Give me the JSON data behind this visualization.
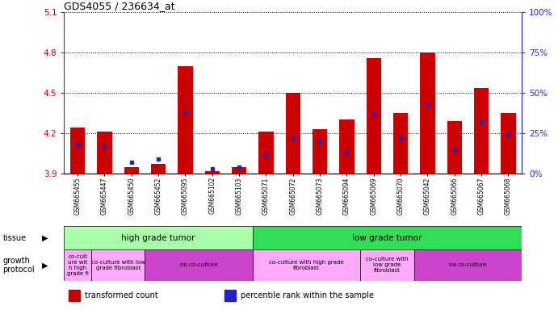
{
  "title": "GDS4055 / 236634_at",
  "samples": [
    "GSM665455",
    "GSM665447",
    "GSM665450",
    "GSM665452",
    "GSM665095",
    "GSM665102",
    "GSM665103",
    "GSM665071",
    "GSM665072",
    "GSM665073",
    "GSM665094",
    "GSM665069",
    "GSM665070",
    "GSM665042",
    "GSM665066",
    "GSM665067",
    "GSM665068"
  ],
  "transformed_count": [
    4.24,
    4.21,
    3.95,
    3.97,
    4.7,
    3.92,
    3.95,
    4.21,
    4.5,
    4.23,
    4.3,
    4.76,
    4.35,
    4.8,
    4.29,
    4.54,
    4.35
  ],
  "percentile_rank": [
    18,
    17,
    7,
    9,
    38,
    3,
    4,
    12,
    22,
    20,
    13,
    37,
    22,
    43,
    15,
    32,
    24
  ],
  "y_min": 3.9,
  "y_max": 5.1,
  "y_ticks_left": [
    3.9,
    4.2,
    4.5,
    4.8,
    5.1
  ],
  "y_ticks_right": [
    0,
    25,
    50,
    75,
    100
  ],
  "bar_color": "#cc0000",
  "dot_color": "#2222cc",
  "tissue_groups": [
    {
      "label": "high grade tumor",
      "start": 0,
      "end": 7,
      "color": "#aaffaa"
    },
    {
      "label": "low grade tumor",
      "start": 7,
      "end": 17,
      "color": "#33dd55"
    }
  ],
  "growth_groups": [
    {
      "label": "co-cult\nure wit\nh high\ngrade fi",
      "start": 0,
      "end": 1,
      "color": "#ffaaff"
    },
    {
      "label": "co-culture with low\ngrade fibroblast",
      "start": 1,
      "end": 3,
      "color": "#ffaaff"
    },
    {
      "label": "no co-culture",
      "start": 3,
      "end": 7,
      "color": "#cc44cc"
    },
    {
      "label": "co-culture with high grade\nfibroblast",
      "start": 7,
      "end": 11,
      "color": "#ffaaff"
    },
    {
      "label": "co-culture with\nlow grade\nfibroblast",
      "start": 11,
      "end": 13,
      "color": "#ffaaff"
    },
    {
      "label": "no co-culture",
      "start": 13,
      "end": 17,
      "color": "#cc44cc"
    }
  ],
  "bar_color_label": "transformed count",
  "dot_color_label": "percentile rank within the sample",
  "left_axis_color": "#cc0000",
  "right_axis_color": "#2222cc",
  "fig_width": 6.91,
  "fig_height": 3.84,
  "dpi": 100
}
